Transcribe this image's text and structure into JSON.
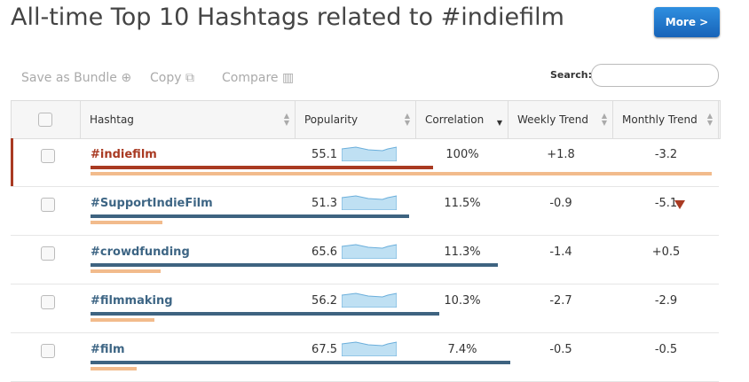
{
  "header": {
    "title": "All-time Top 10 Hashtags related to #indiefilm",
    "button": "More >"
  },
  "toolbar": {
    "items": [
      "Save as Bundle",
      "Copy",
      "Compare"
    ],
    "search_label": "Search:"
  },
  "table": {
    "columns": [
      "Hashtag",
      "Popularity",
      "Correlation",
      "Weekly Trend",
      "Monthly Trend"
    ],
    "rows": [
      {
        "hashtag": "#indiefilm",
        "popularity": 55.1,
        "correlation": {
          "value": 100,
          "label": "100%"
        },
        "weekly": "+1.8",
        "monthly": "-3.2"
      },
      {
        "hashtag": "#SupportIndieFilm",
        "popularity": 51.3,
        "correlation": {
          "value": 11.5,
          "label": "11.5%"
        },
        "weekly": "-0.9",
        "monthly": "-5.1"
      },
      {
        "hashtag": "#crowdfunding",
        "popularity": 65.6,
        "correlation": {
          "value": 11.3,
          "label": "11.3%"
        },
        "weekly": "-1.4",
        "monthly": "+0.5"
      },
      {
        "hashtag": "#filmmaking",
        "popularity": 56.2,
        "correlation": {
          "value": 10.3,
          "label": "10.3%"
        },
        "weekly": "-2.7",
        "monthly": "-2.9"
      },
      {
        "hashtag": "#film",
        "popularity": 67.5,
        "correlation": {
          "value": 7.4,
          "label": "7.4%"
        },
        "weekly": "-0.5",
        "monthly": "-0.5"
      }
    ]
  }
}
